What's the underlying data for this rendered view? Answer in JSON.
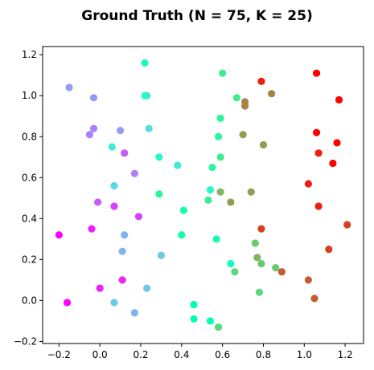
{
  "chart_data": {
    "type": "scatter",
    "title": "Ground Truth (N = 75, K = 25)",
    "xlabel": "",
    "ylabel": "",
    "xlim": [
      -0.28,
      1.29
    ],
    "ylim": [
      -0.21,
      1.24
    ],
    "xticks": [
      -0.2,
      0.0,
      0.2,
      0.4,
      0.6,
      0.8,
      1.0,
      1.2
    ],
    "yticks": [
      -0.2,
      0.0,
      0.2,
      0.4,
      0.6,
      0.8,
      1.0,
      1.2
    ],
    "xtick_labels": [
      "−0.2",
      "0.0",
      "0.2",
      "0.4",
      "0.6",
      "0.8",
      "1.0",
      "1.2"
    ],
    "ytick_labels": [
      "−0.2",
      "0.0",
      "0.2",
      "0.4",
      "0.6",
      "0.8",
      "1.0",
      "1.2"
    ],
    "grid": false,
    "colormap": "rainbow",
    "points": [
      {
        "x": -0.2,
        "y": 0.32,
        "c": 0.0
      },
      {
        "x": -0.16,
        "y": -0.01,
        "c": 0.0
      },
      {
        "x": -0.04,
        "y": 0.35,
        "c": 0.04
      },
      {
        "x": 0.0,
        "y": 0.06,
        "c": 0.04
      },
      {
        "x": 0.11,
        "y": 0.1,
        "c": 0.04
      },
      {
        "x": 0.19,
        "y": 0.41,
        "c": 0.08
      },
      {
        "x": 0.07,
        "y": 0.46,
        "c": 0.08
      },
      {
        "x": 0.12,
        "y": 0.72,
        "c": 0.12
      },
      {
        "x": -0.01,
        "y": 0.48,
        "c": 0.12
      },
      {
        "x": 0.17,
        "y": 0.62,
        "c": 0.17
      },
      {
        "x": -0.03,
        "y": 0.84,
        "c": 0.17
      },
      {
        "x": -0.05,
        "y": 0.81,
        "c": 0.17
      },
      {
        "x": 0.1,
        "y": 0.83,
        "c": 0.21
      },
      {
        "x": -0.03,
        "y": 0.99,
        "c": 0.21
      },
      {
        "x": -0.15,
        "y": 1.04,
        "c": 0.21
      },
      {
        "x": 0.17,
        "y": -0.06,
        "c": 0.25
      },
      {
        "x": 0.12,
        "y": 0.32,
        "c": 0.25
      },
      {
        "x": 0.11,
        "y": 0.24,
        "c": 0.25
      },
      {
        "x": 0.07,
        "y": -0.01,
        "c": 0.29
      },
      {
        "x": 0.23,
        "y": 0.06,
        "c": 0.29
      },
      {
        "x": 0.3,
        "y": 0.22,
        "c": 0.29
      },
      {
        "x": 0.07,
        "y": 0.56,
        "c": 0.33
      },
      {
        "x": 0.24,
        "y": 0.84,
        "c": 0.33
      },
      {
        "x": 0.23,
        "y": 1.0,
        "c": 0.38
      },
      {
        "x": 0.38,
        "y": 0.66,
        "c": 0.38
      },
      {
        "x": 0.06,
        "y": 0.75,
        "c": 0.38
      },
      {
        "x": 0.22,
        "y": 1.0,
        "c": 0.42
      },
      {
        "x": 0.29,
        "y": 0.7,
        "c": 0.42
      },
      {
        "x": 0.54,
        "y": 0.54,
        "c": 0.42
      },
      {
        "x": 0.22,
        "y": 1.16,
        "c": 0.46
      },
      {
        "x": 0.64,
        "y": 0.18,
        "c": 0.46
      },
      {
        "x": 0.46,
        "y": -0.02,
        "c": 0.5
      },
      {
        "x": 0.46,
        "y": -0.09,
        "c": 0.5
      },
      {
        "x": 0.54,
        "y": -0.1,
        "c": 0.5
      },
      {
        "x": 0.4,
        "y": 0.32,
        "c": 0.54
      },
      {
        "x": 0.57,
        "y": 0.3,
        "c": 0.54
      },
      {
        "x": 0.41,
        "y": 0.44,
        "c": 0.54
      },
      {
        "x": 0.29,
        "y": 0.52,
        "c": 0.58
      },
      {
        "x": 0.55,
        "y": 0.65,
        "c": 0.58
      },
      {
        "x": 0.58,
        "y": 0.8,
        "c": 0.58
      },
      {
        "x": 0.59,
        "y": 0.89,
        "c": 0.58
      },
      {
        "x": 0.59,
        "y": 0.7,
        "c": 0.62
      },
      {
        "x": 0.53,
        "y": 0.49,
        "c": 0.62
      },
      {
        "x": 0.67,
        "y": 0.99,
        "c": 0.62
      },
      {
        "x": 0.6,
        "y": 1.11,
        "c": 0.62
      },
      {
        "x": 0.58,
        "y": -0.13,
        "c": 0.67
      },
      {
        "x": 0.66,
        "y": 0.14,
        "c": 0.67
      },
      {
        "x": 0.78,
        "y": 0.04,
        "c": 0.67
      },
      {
        "x": 0.76,
        "y": 0.28,
        "c": 0.71
      },
      {
        "x": 0.79,
        "y": 0.18,
        "c": 0.71
      },
      {
        "x": 0.86,
        "y": 0.16,
        "c": 0.71
      },
      {
        "x": 0.77,
        "y": 0.21,
        "c": 0.75
      },
      {
        "x": 0.59,
        "y": 0.53,
        "c": 0.75
      },
      {
        "x": 0.64,
        "y": 0.48,
        "c": 0.79
      },
      {
        "x": 0.74,
        "y": 0.53,
        "c": 0.79
      },
      {
        "x": 0.7,
        "y": 0.81,
        "c": 0.79
      },
      {
        "x": 0.8,
        "y": 0.76,
        "c": 0.79
      },
      {
        "x": 0.71,
        "y": 0.97,
        "c": 0.83
      },
      {
        "x": 0.71,
        "y": 0.95,
        "c": 0.83
      },
      {
        "x": 0.84,
        "y": 1.01,
        "c": 0.83
      },
      {
        "x": 0.89,
        "y": 0.14,
        "c": 0.88
      },
      {
        "x": 1.02,
        "y": 0.1,
        "c": 0.88
      },
      {
        "x": 1.05,
        "y": 0.01,
        "c": 0.88
      },
      {
        "x": 0.79,
        "y": 0.35,
        "c": 0.92
      },
      {
        "x": 1.12,
        "y": 0.25,
        "c": 0.92
      },
      {
        "x": 1.21,
        "y": 0.37,
        "c": 0.92
      },
      {
        "x": 1.02,
        "y": 0.57,
        "c": 0.96
      },
      {
        "x": 1.07,
        "y": 0.46,
        "c": 0.96
      },
      {
        "x": 1.07,
        "y": 0.72,
        "c": 0.96
      },
      {
        "x": 0.79,
        "y": 1.07,
        "c": 0.96
      },
      {
        "x": 1.14,
        "y": 0.67,
        "c": 1.0
      },
      {
        "x": 1.16,
        "y": 0.77,
        "c": 1.0
      },
      {
        "x": 1.06,
        "y": 0.82,
        "c": 1.0
      },
      {
        "x": 1.06,
        "y": 1.11,
        "c": 1.0
      },
      {
        "x": 1.17,
        "y": 0.98,
        "c": 1.0
      }
    ]
  }
}
